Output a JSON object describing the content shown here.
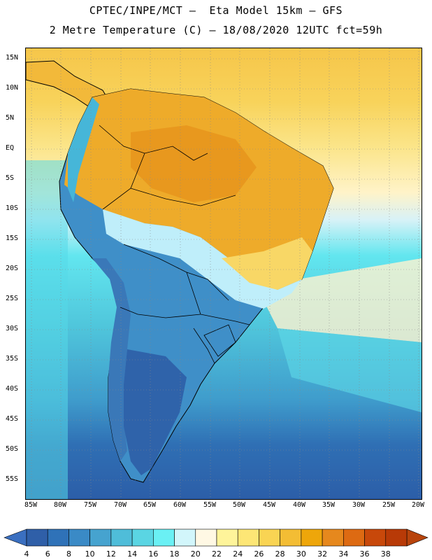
{
  "header": {
    "line1": "CPTEC/INPE/MCT –  Eta Model 15km – GFS",
    "line2": "2 Metre Temperature (C) – 18/08/2020 12UTC fct=59h"
  },
  "map": {
    "lat_ticks": [
      "15N",
      "10N",
      "5N",
      "EQ",
      "5S",
      "10S",
      "15S",
      "20S",
      "25S",
      "30S",
      "35S",
      "40S",
      "45S",
      "50S",
      "55S"
    ],
    "lon_ticks": [
      "85W",
      "80W",
      "75W",
      "70W",
      "65W",
      "60W",
      "55W",
      "50W",
      "45W",
      "40W",
      "35W",
      "30W",
      "25W",
      "20W"
    ],
    "grid": true
  },
  "colorbar": {
    "labels": [
      "4",
      "6",
      "8",
      "10",
      "12",
      "14",
      "16",
      "18",
      "20",
      "22",
      "24",
      "26",
      "28",
      "30",
      "32",
      "34",
      "36",
      "38"
    ],
    "colors": [
      "#2f5fa8",
      "#2f72b8",
      "#3a8ac6",
      "#46a3cf",
      "#4fbdd9",
      "#5ad5e3",
      "#6af0f4",
      "#d2f6fb",
      "#fff8e4",
      "#fef49a",
      "#fde675",
      "#f9d453",
      "#f3bd34",
      "#eea60a",
      "#e6881d",
      "#dd6a12",
      "#c8480a",
      "#b83a07"
    ],
    "low_color": "#3a6fc0",
    "high_color": "#b8440c"
  }
}
